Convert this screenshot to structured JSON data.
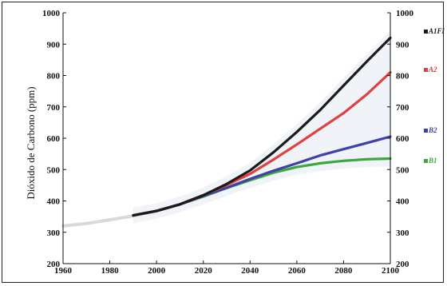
{
  "chart_data": {
    "type": "line",
    "title": "",
    "xlabel": "",
    "ylabel": "Dióxido de Carbono (ppm)",
    "xlim": [
      1960,
      2100
    ],
    "ylim": [
      200,
      1000
    ],
    "x_ticks": [
      "1960",
      "1980",
      "2000",
      "2020",
      "2040",
      "2060",
      "2080",
      "2100"
    ],
    "y_ticks_left": [
      "200",
      "300",
      "400",
      "500",
      "600",
      "700",
      "800",
      "900",
      "1000"
    ],
    "y_ticks_right": [
      "200",
      "300",
      "400",
      "500",
      "600",
      "700",
      "800",
      "900",
      "1000"
    ],
    "grid": false,
    "legend_position": "right",
    "historical": {
      "x": [
        1960,
        1970,
        1980,
        1990,
        2000
      ],
      "y": [
        320,
        328,
        340,
        352,
        368
      ],
      "color": "#d9d9d9"
    },
    "series": [
      {
        "name": "A1FI",
        "color": "#1a1a1a",
        "x": [
          1990,
          2000,
          2010,
          2020,
          2030,
          2040,
          2050,
          2060,
          2070,
          2080,
          2090,
          2100
        ],
        "y": [
          354,
          368,
          389,
          418,
          454,
          497,
          555,
          620,
          690,
          768,
          845,
          920
        ]
      },
      {
        "name": "A2",
        "color": "#e04040",
        "x": [
          1990,
          2000,
          2010,
          2020,
          2030,
          2040,
          2050,
          2060,
          2070,
          2080,
          2090,
          2100
        ],
        "y": [
          354,
          368,
          389,
          418,
          451,
          486,
          532,
          580,
          630,
          680,
          740,
          810
        ]
      },
      {
        "name": "B2",
        "color": "#4040aa",
        "x": [
          1990,
          2000,
          2010,
          2020,
          2030,
          2040,
          2050,
          2060,
          2070,
          2080,
          2090,
          2100
        ],
        "y": [
          354,
          368,
          389,
          416,
          442,
          470,
          496,
          520,
          545,
          565,
          585,
          605
        ]
      },
      {
        "name": "B1",
        "color": "#3aa83a",
        "x": [
          1990,
          2000,
          2010,
          2020,
          2030,
          2040,
          2050,
          2060,
          2070,
          2080,
          2090,
          2100
        ],
        "y": [
          354,
          368,
          389,
          414,
          441,
          466,
          490,
          508,
          520,
          528,
          533,
          535
        ]
      }
    ]
  }
}
